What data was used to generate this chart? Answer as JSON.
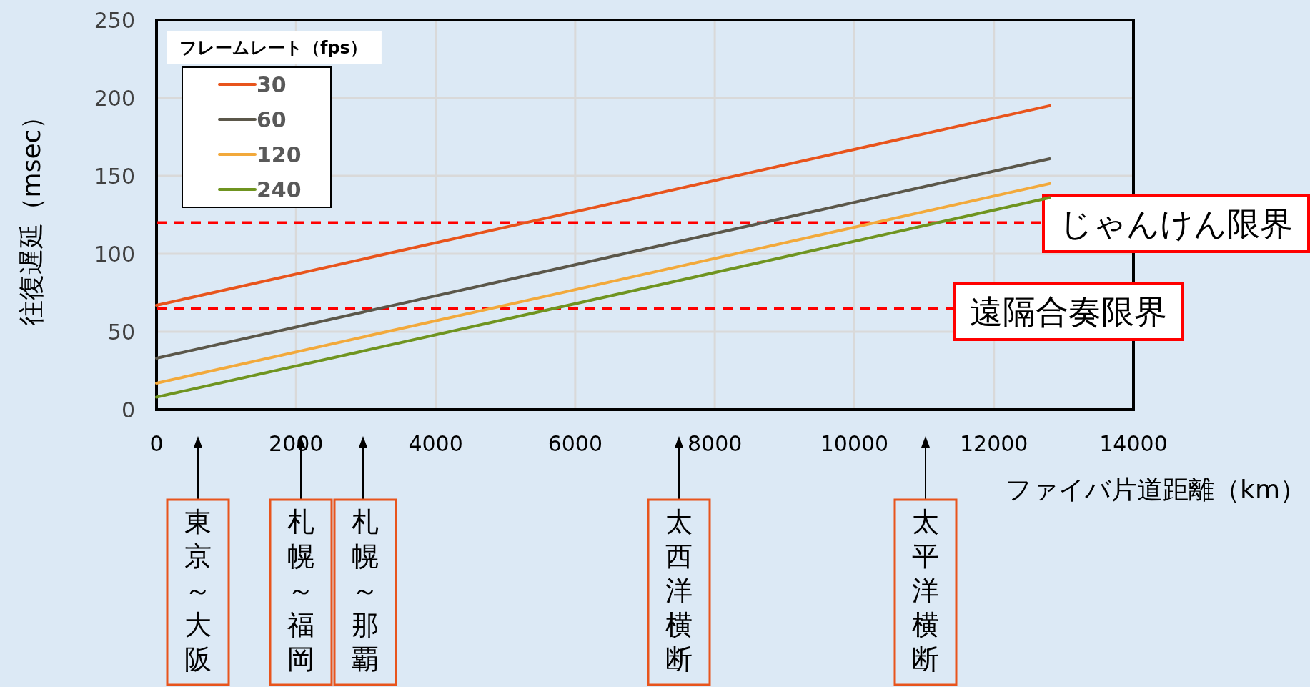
{
  "chart_data": {
    "type": "line",
    "xlabel": "ファイバ片道距離（km）",
    "ylabel": "往復遅延（msec）",
    "legend_title": "フレームレート（fps）",
    "x": [
      0,
      12800
    ],
    "series": [
      {
        "name": "30",
        "color": "#e8541c",
        "values": [
          67,
          195
        ]
      },
      {
        "name": "60",
        "color": "#5b574a",
        "values": [
          33,
          161
        ]
      },
      {
        "name": "120",
        "color": "#f2a93b",
        "values": [
          17,
          145
        ]
      },
      {
        "name": "240",
        "color": "#6f9420",
        "values": [
          8,
          136
        ]
      }
    ],
    "xlim": [
      0,
      14000
    ],
    "xticks": [
      0,
      2000,
      4000,
      6000,
      8000,
      10000,
      12000,
      14000
    ],
    "ylim": [
      0,
      250
    ],
    "yticks": [
      0,
      50,
      100,
      150,
      200,
      250
    ],
    "grid": true,
    "legend": "top left",
    "marker": "none",
    "line_style": "solid",
    "ref_lines": [
      {
        "axis": "y",
        "value": 120,
        "label": "じゃんけん限界",
        "color": "#ff0000",
        "line_style": "dashed"
      },
      {
        "axis": "y",
        "value": 65,
        "label": "遠隔合奏限界",
        "color": "#ff0000",
        "line_style": "dashed"
      }
    ],
    "annotations": [
      "東京～大阪",
      "札幌～福岡",
      "札幌～那覇",
      "太西洋横断",
      "太平洋横断"
    ]
  }
}
